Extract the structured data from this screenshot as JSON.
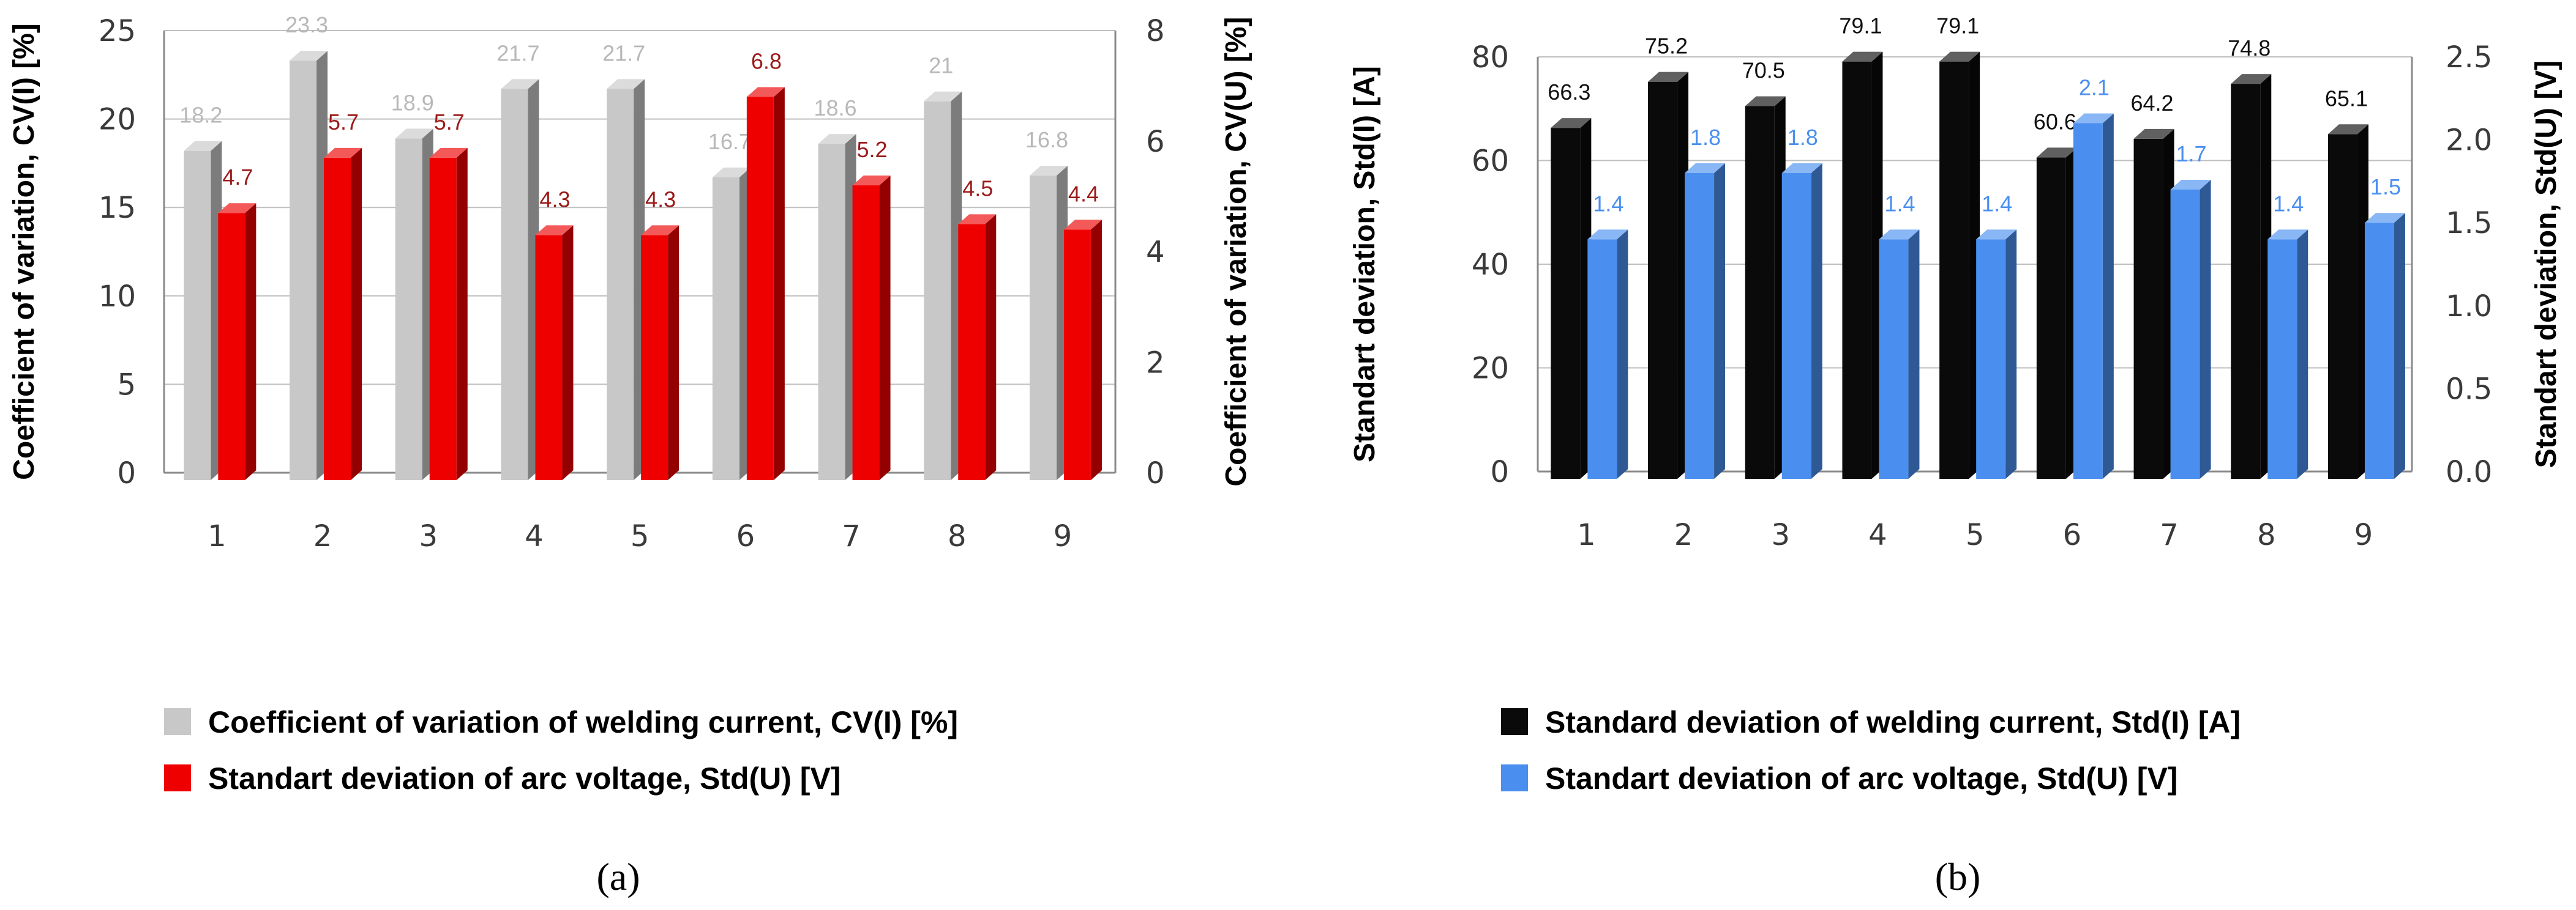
{
  "chart_data": [
    {
      "id": "a",
      "type": "bar",
      "caption": "(a)",
      "categories": [
        "1",
        "2",
        "3",
        "4",
        "5",
        "6",
        "7",
        "8",
        "9"
      ],
      "ylabel": "Coefficient of variation, CV(I) [%]",
      "y2label": "Coefficient of variation, CV(U) [%]",
      "ylim": [
        0,
        25
      ],
      "y2lim": [
        0,
        8
      ],
      "yticks": [
        "0",
        "5",
        "10",
        "15",
        "20",
        "25"
      ],
      "y2ticks": [
        "0",
        "2",
        "4",
        "6",
        "8"
      ],
      "series": [
        {
          "name": "Coefficient of variation of welding current, CV(I) [%]",
          "axis": "left",
          "color": "#c8c8c8",
          "labelColor": "#b8b8b8",
          "values": [
            18.2,
            23.3,
            18.9,
            21.7,
            21.7,
            16.7,
            18.6,
            21,
            16.8
          ],
          "labels": [
            "18.2",
            "23.3",
            "18.9",
            "21.7",
            "21.7",
            "16.7",
            "18.6",
            "21",
            "16.8"
          ]
        },
        {
          "name": "Standart deviation of arc voltage, Std(U) [V]",
          "axis": "right",
          "color": "#ee0000",
          "labelColor": "#9b1a1a",
          "values": [
            4.7,
            5.7,
            5.7,
            4.3,
            4.3,
            6.8,
            5.2,
            4.5,
            4.4
          ],
          "labels": [
            "4.7",
            "5.7",
            "5.7",
            "4.3",
            "4.3",
            "6.8",
            "5.2",
            "4.5",
            "4.4"
          ]
        }
      ]
    },
    {
      "id": "b",
      "type": "bar",
      "caption": "(b)",
      "categories": [
        "1",
        "2",
        "3",
        "4",
        "5",
        "6",
        "7",
        "8",
        "9"
      ],
      "ylabel": "Standart deviation, Std(I) [A]",
      "y2label": "Standart deviation, Std(U) [V]",
      "ylim": [
        0,
        80
      ],
      "y2lim": [
        0,
        2.5
      ],
      "yticks": [
        "0",
        "20",
        "40",
        "60",
        "80"
      ],
      "y2ticks": [
        "0.0",
        "0.5",
        "1.0",
        "1.5",
        "2.0",
        "2.5"
      ],
      "series": [
        {
          "name": "Standard deviation of welding current, Std(I) [A]",
          "axis": "left",
          "color": "#0a0a0a",
          "labelColor": "#111111",
          "values": [
            66.3,
            75.2,
            70.5,
            79.1,
            79.1,
            60.6,
            64.2,
            74.8,
            65.1
          ],
          "labels": [
            "66.3",
            "75.2",
            "70.5",
            "79.1",
            "79.1",
            "60.6",
            "64.2",
            "74.8",
            "65.1"
          ]
        },
        {
          "name": "Standart deviation of arc voltage, Std(U) [V]",
          "axis": "right",
          "color": "#4a8ff0",
          "labelColor": "#4a8ff0",
          "values": [
            1.4,
            1.8,
            1.8,
            1.4,
            1.4,
            2.1,
            1.7,
            1.4,
            1.5
          ],
          "labels": [
            "1.4",
            "1.8",
            "1.8",
            "1.4",
            "1.4",
            "2.1",
            "1.7",
            "1.4",
            "1.5"
          ]
        }
      ]
    }
  ]
}
